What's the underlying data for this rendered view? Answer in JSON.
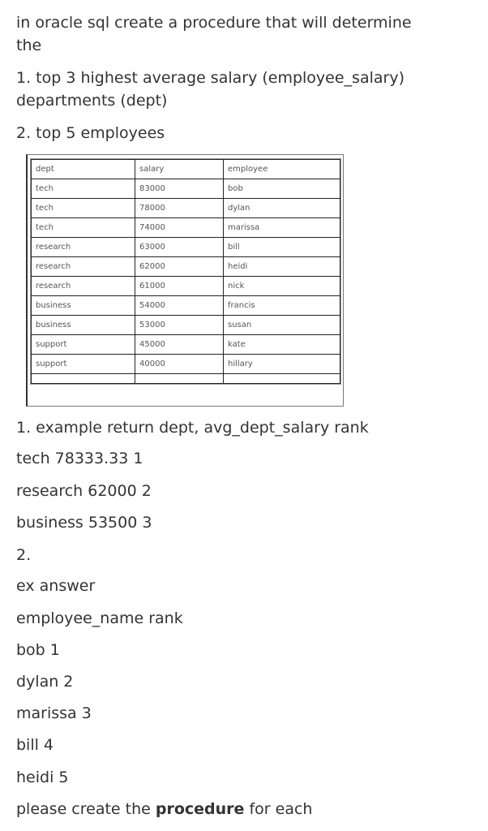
{
  "question": {
    "line1": "in oracle sql create a procedure that will determine",
    "line2": "the",
    "item1a": "1. top 3 highest average salary (employee_salary)",
    "item1b": "departments (dept)",
    "item2": "2. top 5 employees"
  },
  "table": {
    "headers": [
      "dept",
      "salary",
      "employee"
    ],
    "rows": [
      [
        "tech",
        "83000",
        "bob"
      ],
      [
        "tech",
        "78000",
        "dylan"
      ],
      [
        "tech",
        "74000",
        "marissa"
      ],
      [
        "research",
        "63000",
        "bill"
      ],
      [
        "research",
        "62000",
        "heidi"
      ],
      [
        "research",
        "61000",
        "nick"
      ],
      [
        "business",
        "54000",
        "francis"
      ],
      [
        "business",
        "53000",
        "susan"
      ],
      [
        "support",
        "45000",
        "kate"
      ],
      [
        "support",
        "40000",
        "hillary"
      ]
    ]
  },
  "example": {
    "line1": "1. example return dept, avg_dept_salary rank",
    "r1": "tech 78333.33 1",
    "r2": "research 62000 2",
    "r3": "business 53500 3",
    "num2": "2.",
    "ex": "ex answer",
    "hdr": "employee_name rank",
    "e1": "bob 1",
    "e2": "dylan 2",
    "e3": "marissa 3",
    "e4": "bill 4",
    "e5": "heidi 5",
    "final_pre": "please create the ",
    "final_bold": "procedure",
    "final_post": " for each"
  }
}
